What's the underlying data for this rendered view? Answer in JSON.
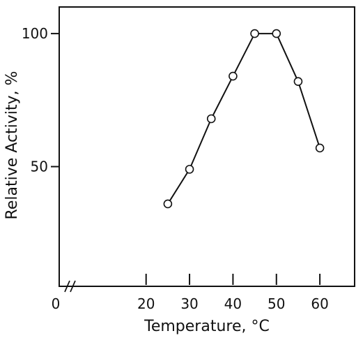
{
  "chart_data": {
    "type": "line",
    "title": "",
    "xlabel": "Temperature, °C",
    "ylabel": "Relative Activity, %",
    "x_axis_break": true,
    "x_origin_label": "0",
    "x_ticks": [
      20,
      30,
      40,
      50,
      60
    ],
    "x_tick_labels": [
      "20",
      "30",
      "40",
      "50",
      "60"
    ],
    "y_ticks": [
      50,
      100
    ],
    "y_tick_labels": [
      "50",
      "100"
    ],
    "xlim": [
      0,
      68
    ],
    "ylim": [
      5,
      110
    ],
    "grid": false,
    "series": [
      {
        "x": [
          25,
          30,
          35,
          40,
          45,
          50,
          55,
          60
        ],
        "y": [
          36,
          49,
          68,
          84,
          100,
          100,
          82,
          57
        ],
        "marker": "open-circle",
        "color": "#111111"
      }
    ]
  }
}
